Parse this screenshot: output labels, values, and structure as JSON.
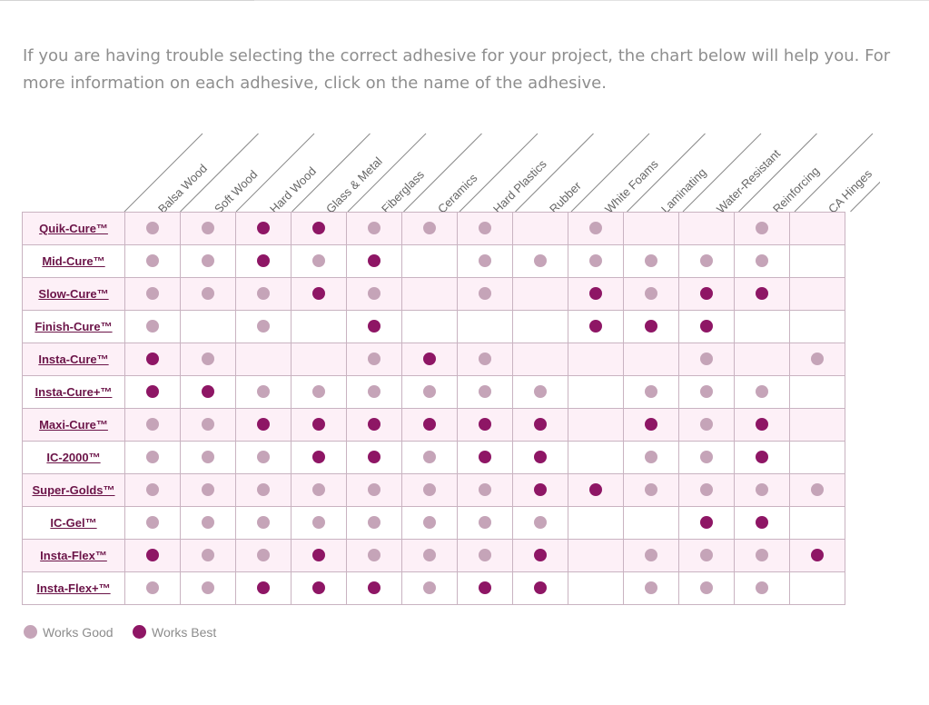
{
  "intro_text": "If you are having trouble selecting the correct adhesive for your project, the chart below will help you. For more information on each adhesive, click on the name of the adhesive.",
  "chart_data": {
    "type": "table",
    "columns": [
      "Balsa Wood",
      "Soft Wood",
      "Hard Wood",
      "Glass & Metal",
      "Fiberglass",
      "Ceramics",
      "Hard Plastics",
      "Rubber",
      "White Foams",
      "Laminating",
      "Water-Resistant",
      "Reinforcing",
      "CA Hinges"
    ],
    "rows": [
      {
        "name": "Quik-Cure™",
        "cells": [
          "good",
          "good",
          "best",
          "best",
          "good",
          "good",
          "good",
          "",
          "good",
          "",
          "",
          "good",
          ""
        ]
      },
      {
        "name": "Mid-Cure™",
        "cells": [
          "good",
          "good",
          "best",
          "good",
          "best",
          "",
          "good",
          "good",
          "good",
          "good",
          "good",
          "good",
          ""
        ]
      },
      {
        "name": "Slow-Cure™",
        "cells": [
          "good",
          "good",
          "good",
          "best",
          "good",
          "",
          "good",
          "",
          "best",
          "good",
          "best",
          "best",
          ""
        ]
      },
      {
        "name": "Finish-Cure™",
        "cells": [
          "good",
          "",
          "good",
          "",
          "best",
          "",
          "",
          "",
          "best",
          "best",
          "best",
          "",
          ""
        ]
      },
      {
        "name": "Insta-Cure™",
        "cells": [
          "best",
          "good",
          "",
          "",
          "good",
          "best",
          "good",
          "",
          "",
          "",
          "good",
          "",
          "good"
        ]
      },
      {
        "name": "Insta-Cure+™",
        "cells": [
          "best",
          "best",
          "good",
          "good",
          "good",
          "good",
          "good",
          "good",
          "",
          "good",
          "good",
          "good",
          ""
        ]
      },
      {
        "name": "Maxi-Cure™",
        "cells": [
          "good",
          "good",
          "best",
          "best",
          "best",
          "best",
          "best",
          "best",
          "",
          "best",
          "good",
          "best",
          ""
        ]
      },
      {
        "name": "IC-2000™",
        "cells": [
          "good",
          "good",
          "good",
          "best",
          "best",
          "good",
          "best",
          "best",
          "",
          "good",
          "good",
          "best",
          ""
        ]
      },
      {
        "name": "Super-Golds™",
        "cells": [
          "good",
          "good",
          "good",
          "good",
          "good",
          "good",
          "good",
          "best",
          "best",
          "good",
          "good",
          "good",
          "good"
        ]
      },
      {
        "name": "IC-Gel™",
        "cells": [
          "good",
          "good",
          "good",
          "good",
          "good",
          "good",
          "good",
          "good",
          "",
          "",
          "best",
          "best",
          ""
        ]
      },
      {
        "name": "Insta-Flex™",
        "cells": [
          "best",
          "good",
          "good",
          "best",
          "good",
          "good",
          "good",
          "best",
          "",
          "good",
          "good",
          "good",
          "best"
        ]
      },
      {
        "name": "Insta-Flex+™",
        "cells": [
          "good",
          "good",
          "best",
          "best",
          "best",
          "good",
          "best",
          "best",
          "",
          "good",
          "good",
          "good",
          ""
        ]
      }
    ],
    "legend": {
      "good_label": "Works Good",
      "best_label": "Works Best"
    }
  },
  "colors": {
    "good": "#c5a4b8",
    "best": "#8e1665",
    "row_shade": "#fdf0f7",
    "border": "#c9b3c1",
    "link": "#6b1448"
  }
}
